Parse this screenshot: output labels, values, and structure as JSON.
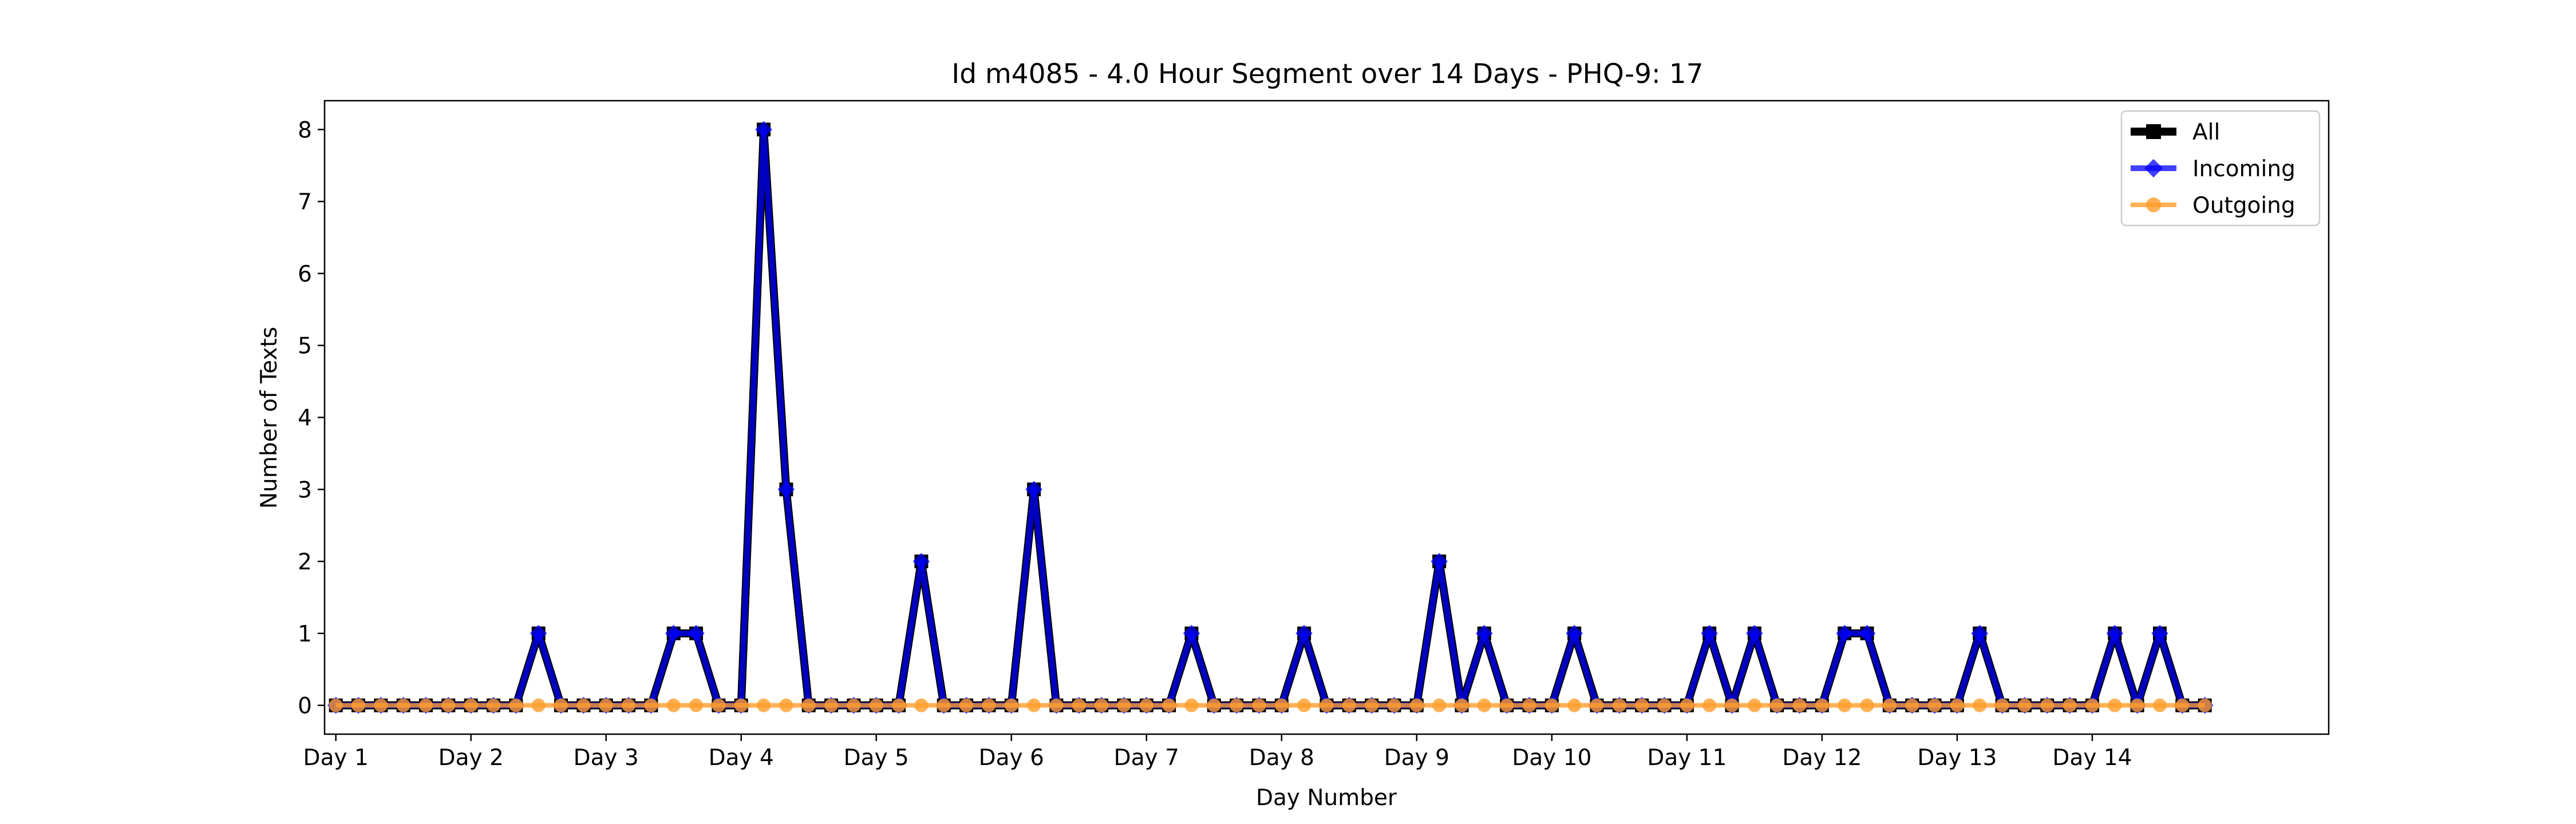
{
  "chart_data": {
    "type": "line",
    "title": "Id m4085 - 4.0 Hour Segment over 14 Days - PHQ-9: 17",
    "xlabel": "Day Number",
    "ylabel": "Number of Texts",
    "xlim": [
      -0.5,
      88.5
    ],
    "ylim": [
      -0.4,
      8.4
    ],
    "yticks": [
      0,
      1,
      2,
      3,
      4,
      5,
      6,
      7,
      8
    ],
    "xtick_positions": [
      0,
      6,
      12,
      18,
      24,
      30,
      36,
      42,
      48,
      54,
      60,
      66,
      72,
      78
    ],
    "xtick_labels": [
      "Day 1",
      "Day 2",
      "Day 3",
      "Day 4",
      "Day 5",
      "Day 6",
      "Day 7",
      "Day 8",
      "Day 9",
      "Day 10",
      "Day 11",
      "Day 12",
      "Day 13",
      "Day 14"
    ],
    "grid": false,
    "legend_position": "top-right",
    "x": [
      0,
      1,
      2,
      3,
      4,
      5,
      6,
      7,
      8,
      9,
      10,
      11,
      12,
      13,
      14,
      15,
      16,
      17,
      18,
      19,
      20,
      21,
      22,
      23,
      24,
      25,
      26,
      27,
      28,
      29,
      30,
      31,
      32,
      33,
      34,
      35,
      36,
      37,
      38,
      39,
      40,
      41,
      42,
      43,
      44,
      45,
      46,
      47,
      48,
      49,
      50,
      51,
      52,
      53,
      54,
      55,
      56,
      57,
      58,
      59,
      60,
      61,
      62,
      63,
      64,
      65,
      66,
      67,
      68,
      69,
      70,
      71,
      72,
      73,
      74,
      75,
      76,
      77,
      78,
      79,
      80,
      81,
      82,
      83
    ],
    "series": [
      {
        "name": "All",
        "color": "#000000",
        "marker": "square",
        "values": [
          0,
          0,
          0,
          0,
          0,
          0,
          0,
          0,
          0,
          1,
          0,
          0,
          0,
          0,
          0,
          1,
          1,
          0,
          0,
          8,
          3,
          0,
          0,
          0,
          0,
          0,
          2,
          0,
          0,
          0,
          0,
          3,
          0,
          0,
          0,
          0,
          0,
          0,
          1,
          0,
          0,
          0,
          0,
          1,
          0,
          0,
          0,
          0,
          0,
          2,
          0,
          1,
          0,
          0,
          0,
          1,
          0,
          0,
          0,
          0,
          0,
          1,
          0,
          1,
          0,
          0,
          0,
          1,
          1,
          0,
          0,
          0,
          0,
          1,
          0,
          0,
          0,
          0,
          0,
          1,
          0,
          1,
          0,
          0
        ]
      },
      {
        "name": "Incoming",
        "color": "#0000ff",
        "marker": "diamond",
        "values": [
          0,
          0,
          0,
          0,
          0,
          0,
          0,
          0,
          0,
          1,
          0,
          0,
          0,
          0,
          0,
          1,
          1,
          0,
          0,
          8,
          3,
          0,
          0,
          0,
          0,
          0,
          2,
          0,
          0,
          0,
          0,
          3,
          0,
          0,
          0,
          0,
          0,
          0,
          1,
          0,
          0,
          0,
          0,
          1,
          0,
          0,
          0,
          0,
          0,
          2,
          0,
          1,
          0,
          0,
          0,
          1,
          0,
          0,
          0,
          0,
          0,
          1,
          0,
          1,
          0,
          0,
          0,
          1,
          1,
          0,
          0,
          0,
          0,
          1,
          0,
          0,
          0,
          0,
          0,
          1,
          0,
          1,
          0,
          0
        ]
      },
      {
        "name": "Outgoing",
        "color": "#ff9e2a",
        "marker": "circle",
        "values": [
          0,
          0,
          0,
          0,
          0,
          0,
          0,
          0,
          0,
          0,
          0,
          0,
          0,
          0,
          0,
          0,
          0,
          0,
          0,
          0,
          0,
          0,
          0,
          0,
          0,
          0,
          0,
          0,
          0,
          0,
          0,
          0,
          0,
          0,
          0,
          0,
          0,
          0,
          0,
          0,
          0,
          0,
          0,
          0,
          0,
          0,
          0,
          0,
          0,
          0,
          0,
          0,
          0,
          0,
          0,
          0,
          0,
          0,
          0,
          0,
          0,
          0,
          0,
          0,
          0,
          0,
          0,
          0,
          0,
          0,
          0,
          0,
          0,
          0,
          0,
          0,
          0,
          0,
          0,
          0,
          0,
          0,
          0,
          0
        ]
      }
    ]
  }
}
